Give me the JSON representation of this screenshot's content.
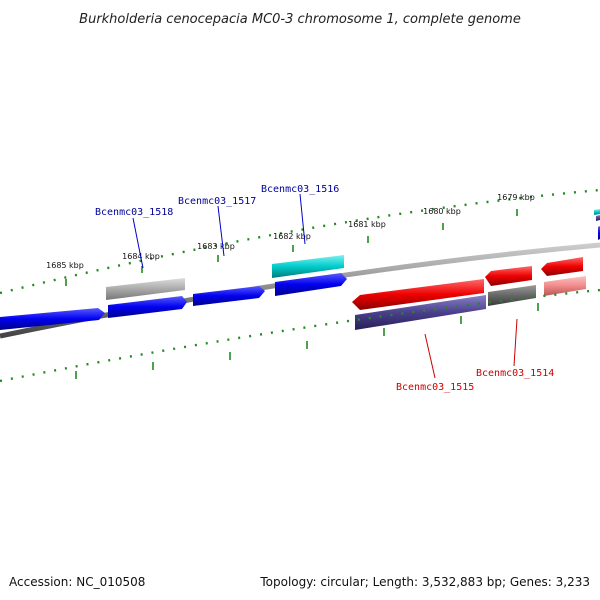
{
  "title": "Burkholderia cenocepacia MC0-3 chromosome 1, complete genome",
  "footer": {
    "accession": "Accession: NC_010508",
    "summary": "Topology: circular; Length: 3,532,883 bp; Genes: 3,233"
  },
  "scale_labels": [
    "1685 kbp",
    "1684 kbp",
    "1683 kbp",
    "1682 kbp",
    "1681 kbp",
    "1680 kbp",
    "1679 kbp"
  ],
  "gene_labels": {
    "g1518": "Bcenmc03_1518",
    "g1517": "Bcenmc03_1517",
    "g1516": "Bcenmc03_1516",
    "g1515": "Bcenmc03_1515",
    "g1514": "Bcenmc03_1514"
  },
  "colors": {
    "forward_cds": "#0000ee",
    "reverse_cds": "#ee0000",
    "cyan_feature": "#00cccc",
    "grey_feature": "#aaaaaa",
    "purple_feature": "#4a3f8c",
    "pink_feature": "#f08a8a",
    "backbone": "#888888",
    "tick": "#228b22",
    "forward_label": "#000099",
    "reverse_label": "#cc0000"
  }
}
